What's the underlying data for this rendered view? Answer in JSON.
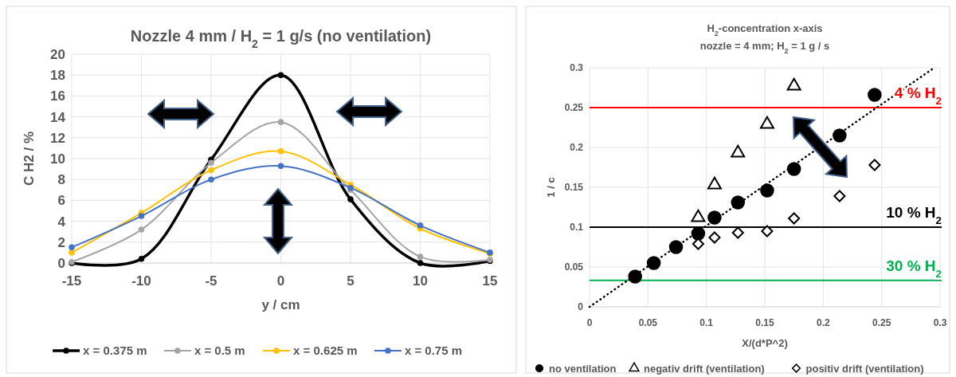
{
  "chart_data": [
    {
      "type": "line",
      "title": "Nozzle 4 mm / H$_{2}$ = 1 g/s (no ventilation)",
      "xlabel": "y / cm",
      "ylabel": "C H2 / %",
      "x": [
        -15,
        -10,
        -5,
        0,
        5,
        10,
        15
      ],
      "series": [
        {
          "name": "x = 0.375 m",
          "color": "#000000",
          "values": [
            0,
            0.4,
            9.9,
            18.0,
            6.1,
            0,
            0.2
          ]
        },
        {
          "name": "x = 0.5 m",
          "color": "#a5a5a5",
          "values": [
            0.1,
            3.2,
            9.6,
            13.5,
            7.0,
            0.6,
            0.3
          ]
        },
        {
          "name": "x = 0.625 m",
          "color": "#ffc000",
          "values": [
            1.0,
            4.8,
            8.9,
            10.7,
            7.5,
            3.3,
            0.9
          ]
        },
        {
          "name": "x = 0.75 m",
          "color": "#4472c4",
          "values": [
            1.5,
            4.5,
            8.0,
            9.3,
            7.2,
            3.6,
            1.0
          ]
        }
      ],
      "xlim": [
        -15,
        15
      ],
      "xticks": [
        -15,
        -10,
        -5,
        0,
        5,
        10,
        15
      ],
      "ylim": [
        0,
        20
      ],
      "yticks": [
        0,
        2,
        4,
        6,
        8,
        10,
        12,
        14,
        16,
        18,
        20
      ],
      "grid": true,
      "legend": "bottom",
      "marker": "circle",
      "line_style": "solid"
    },
    {
      "type": "scatter",
      "title": "H$_{2}$-concentration x-axis",
      "subtitle": "nozzle = 4 mm; H$_{2}$ = 1 g / s",
      "xlabel": "X/(d*P^2)",
      "ylabel": "1 / c",
      "series": [
        {
          "name": "no ventilation",
          "color": "#000000",
          "marker": "circle",
          "x": [
            0.039,
            0.055,
            0.074,
            0.093,
            0.107,
            0.127,
            0.152,
            0.175,
            0.214,
            0.244
          ],
          "values": [
            0.038,
            0.055,
            0.075,
            0.092,
            0.112,
            0.131,
            0.146,
            0.173,
            0.215,
            0.266
          ]
        },
        {
          "name": "negativ drift (ventilation)",
          "color": "#000000",
          "marker": "triangle",
          "x": [
            0.093,
            0.107,
            0.127,
            0.152,
            0.175
          ],
          "values": [
            0.112,
            0.153,
            0.193,
            0.229,
            0.277
          ]
        },
        {
          "name": "positiv drift (ventilation)",
          "color": "#000000",
          "marker": "diamond",
          "x": [
            0.093,
            0.107,
            0.127,
            0.152,
            0.175,
            0.214,
            0.244
          ],
          "values": [
            0.079,
            0.087,
            0.093,
            0.095,
            0.111,
            0.139,
            0.178
          ]
        },
        {
          "type": "line",
          "color": "#000000",
          "line_style": "dotted",
          "x": [
            0,
            0.295
          ],
          "values": [
            0,
            0.3
          ]
        }
      ],
      "xlim": [
        0,
        0.3
      ],
      "xticks": [
        0,
        0.05,
        0.1,
        0.15,
        0.2,
        0.25,
        0.3
      ],
      "ylim": [
        0,
        0.3
      ],
      "yticks": [
        0,
        0.05,
        0.1,
        0.15,
        0.2,
        0.25,
        0.3
      ],
      "ref_lines": [
        {
          "axis": "y",
          "value": 0.25,
          "label": "4 % H$_{2}$",
          "color": "#ff0000"
        },
        {
          "axis": "y",
          "value": 0.1,
          "label": "10 % H$_{2}$",
          "color": "#000000"
        },
        {
          "axis": "y",
          "value": 0.0333,
          "label": "30 % H$_{2}$",
          "color": "#00b050"
        }
      ],
      "grid": true,
      "legend": "bottom"
    }
  ]
}
